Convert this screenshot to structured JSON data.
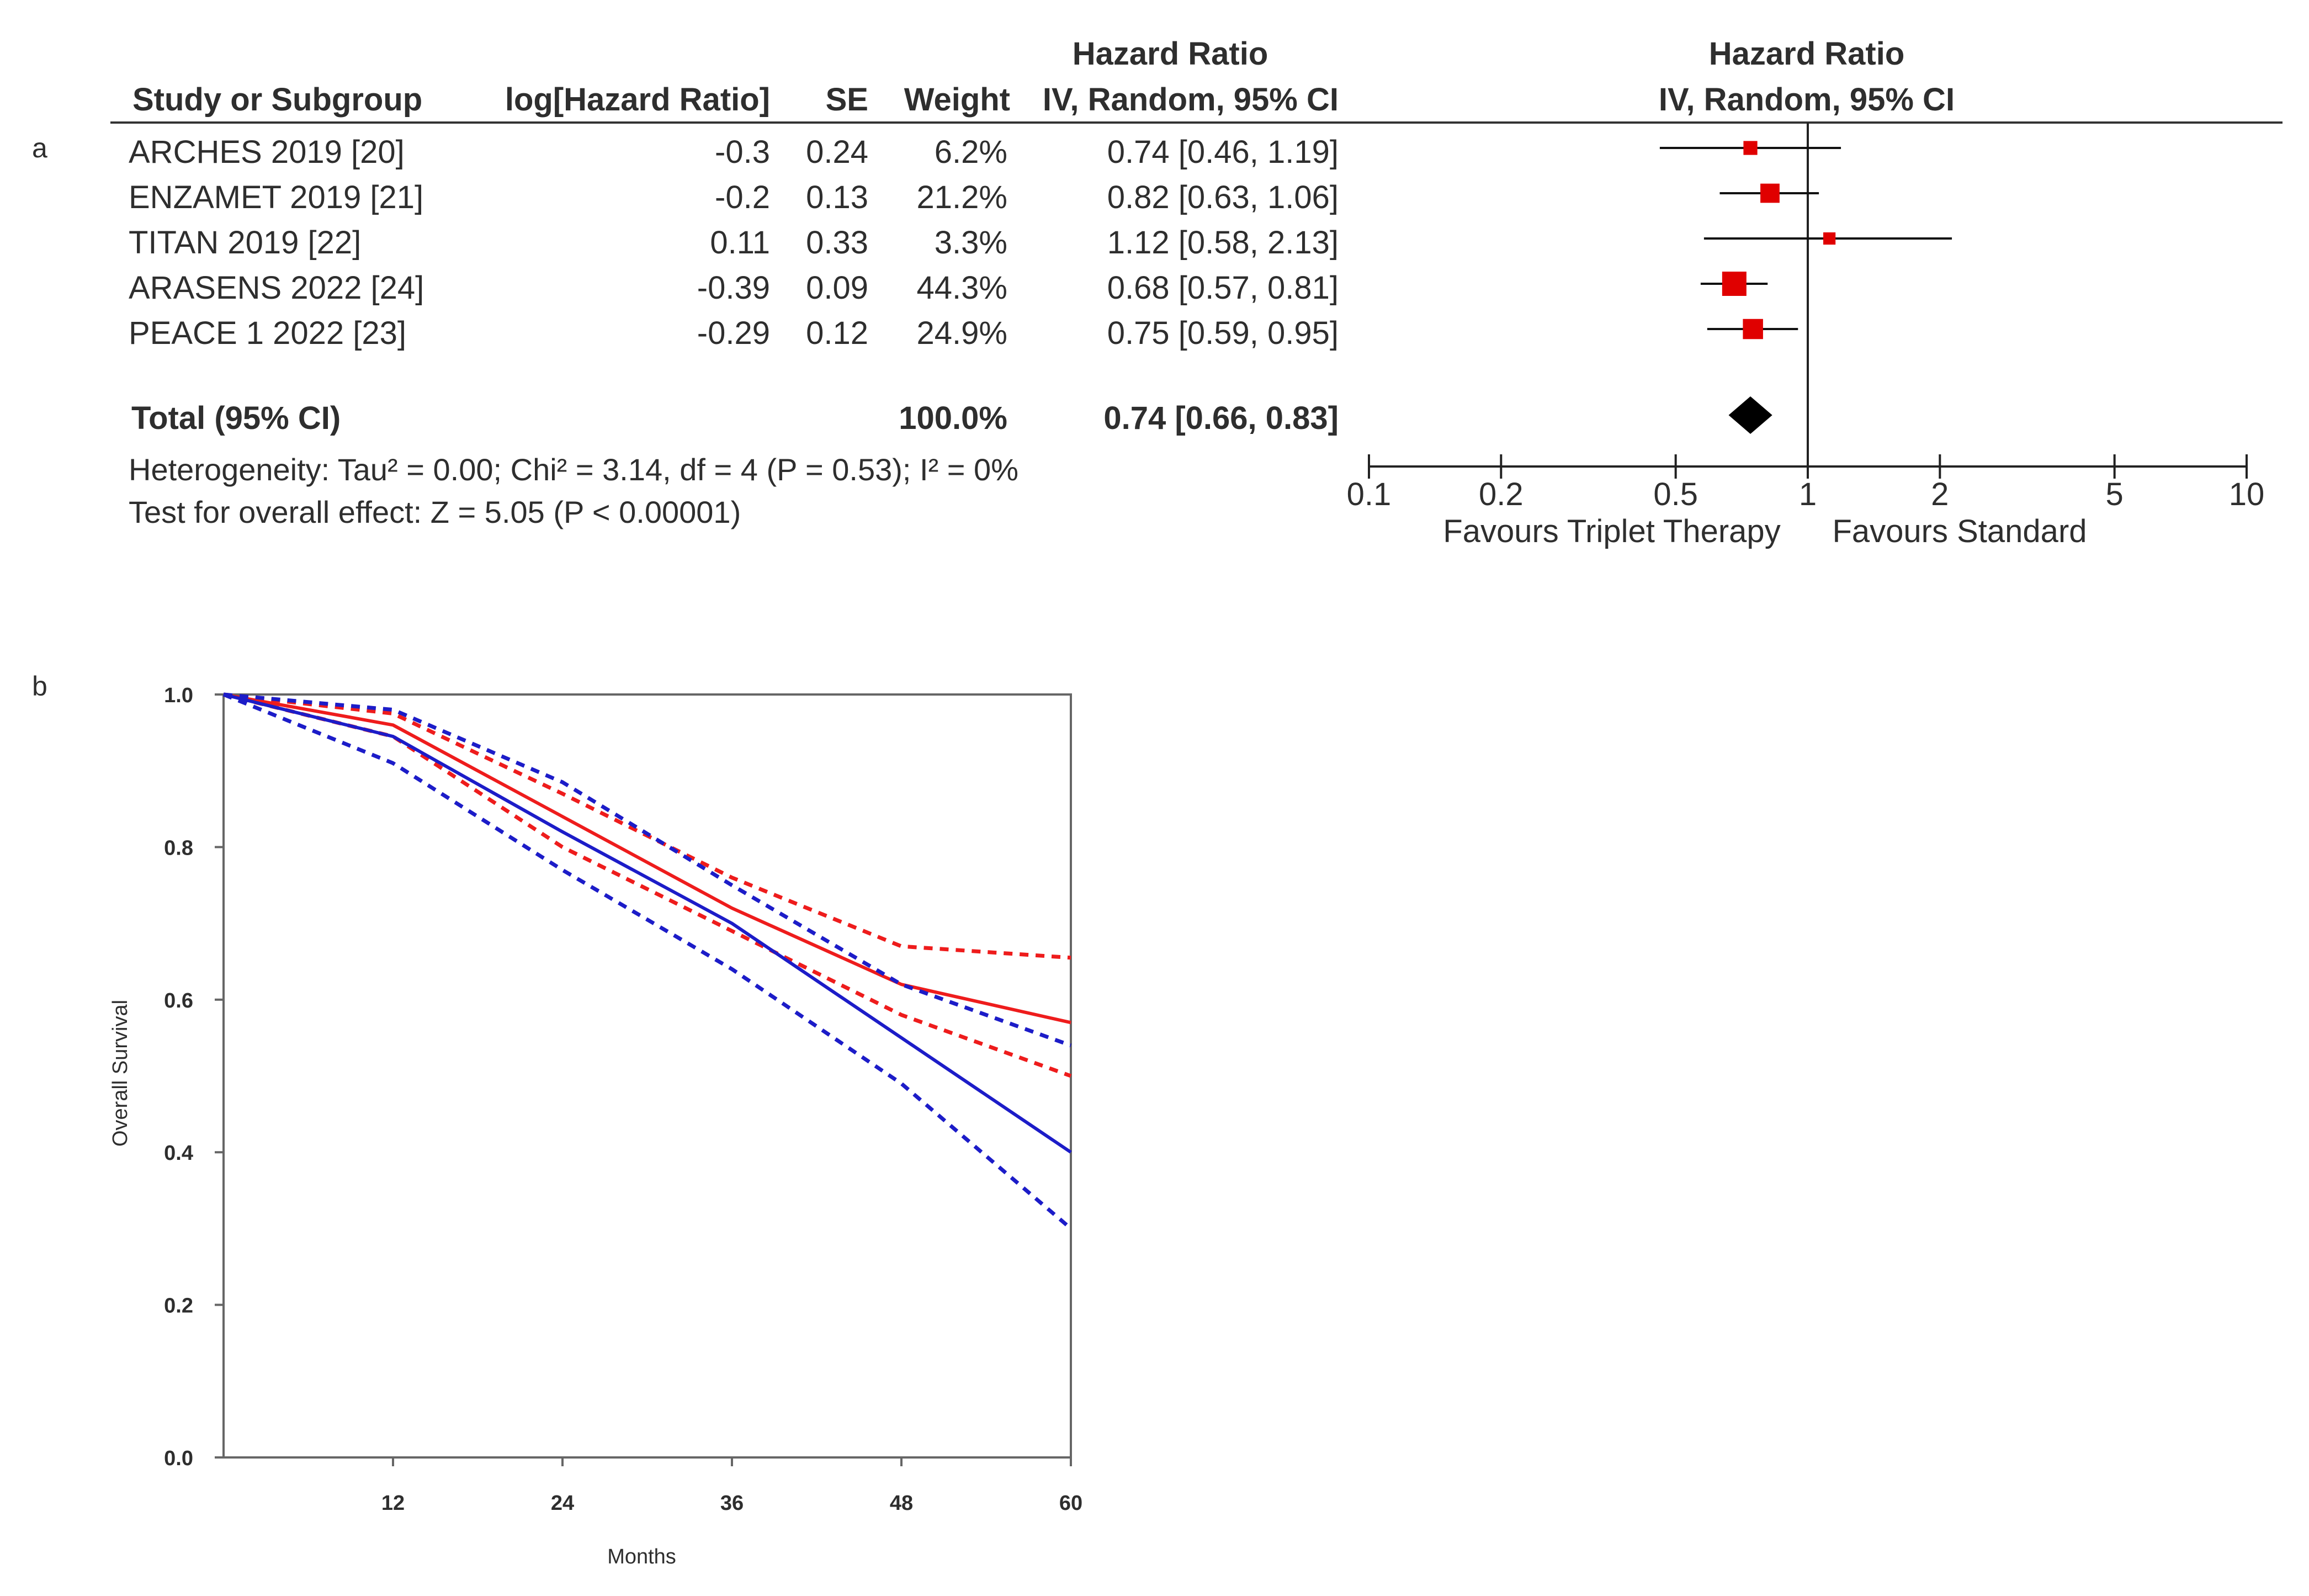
{
  "panel_a": {
    "label": "a",
    "headers": {
      "study": "Study or Subgroup",
      "loghr": "log[Hazard Ratio]",
      "se": "SE",
      "weight": "Weight",
      "hr_line1": "Hazard Ratio",
      "hr_line2": "IV, Random, 95% CI",
      "plot_line1": "Hazard Ratio",
      "plot_line2": "IV, Random, 95% CI"
    },
    "rows": [
      {
        "study": "ARCHES 2019 [20]",
        "loghr": "-0.3",
        "se": "0.24",
        "weight": "6.2%",
        "ci": "0.74 [0.46, 1.19]"
      },
      {
        "study": "ENZAMET 2019 [21]",
        "loghr": "-0.2",
        "se": "0.13",
        "weight": "21.2%",
        "ci": "0.82 [0.63, 1.06]"
      },
      {
        "study": "TITAN 2019 [22]",
        "loghr": "0.11",
        "se": "0.33",
        "weight": "3.3%",
        "ci": "1.12 [0.58, 2.13]"
      },
      {
        "study": "ARASENS 2022 [24]",
        "loghr": "-0.39",
        "se": "0.09",
        "weight": "44.3%",
        "ci": "0.68 [0.57, 0.81]"
      },
      {
        "study": "PEACE 1  2022 [23]",
        "loghr": "-0.29",
        "se": "0.12",
        "weight": "24.9%",
        "ci": "0.75 [0.59, 0.95]"
      }
    ],
    "total": {
      "label": "Total (95% CI)",
      "weight": "100.0%",
      "ci": "0.74 [0.66, 0.83]"
    },
    "heterogeneity": "Heterogeneity: Tau² = 0.00; Chi² = 3.14, df = 4 (P = 0.53); I² = 0%",
    "overall_effect": "Test for overall effect: Z = 5.05 (P < 0.00001)",
    "axis_ticks": [
      "0.1",
      "0.2",
      "0.5",
      "1",
      "2",
      "5",
      "10"
    ],
    "favours_left": "Favours Triplet Therapy",
    "favours_right": "Favours Standard"
  },
  "panel_b": {
    "label": "b"
  },
  "chart_data": [
    {
      "type": "forest",
      "title": "Hazard Ratio IV, Random, 95% CI",
      "scale": "log",
      "xlim": [
        0.1,
        10
      ],
      "ticks": [
        0.1,
        0.2,
        0.5,
        1,
        2,
        5,
        10
      ],
      "reference_line": 1,
      "studies": [
        {
          "name": "ARCHES 2019 [20]",
          "hr": 0.74,
          "lower": 0.46,
          "upper": 1.19,
          "weight": 6.2
        },
        {
          "name": "ENZAMET 2019 [21]",
          "hr": 0.82,
          "lower": 0.63,
          "upper": 1.06,
          "weight": 21.2
        },
        {
          "name": "TITAN 2019 [22]",
          "hr": 1.12,
          "lower": 0.58,
          "upper": 2.13,
          "weight": 3.3
        },
        {
          "name": "ARASENS 2022 [24]",
          "hr": 0.68,
          "lower": 0.57,
          "upper": 0.81,
          "weight": 44.3
        },
        {
          "name": "PEACE 1  2022 [23]",
          "hr": 0.75,
          "lower": 0.59,
          "upper": 0.95,
          "weight": 24.9
        }
      ],
      "pooled": {
        "hr": 0.74,
        "lower": 0.66,
        "upper": 0.83
      },
      "xlabel_left": "Favours Triplet Therapy",
      "xlabel_right": "Favours Standard"
    },
    {
      "type": "line",
      "xlabel": "Months",
      "ylabel": "Overall Survival",
      "xlim": [
        0,
        60
      ],
      "ylim": [
        0,
        1
      ],
      "xticks": [
        12,
        24,
        36,
        48,
        60
      ],
      "yticks": [
        "0.0",
        "0.2",
        "0.4",
        "0.6",
        "0.8",
        "1.0"
      ],
      "series": [
        {
          "name": "red",
          "color": "#ee1c1c",
          "style": "solid",
          "x": [
            0,
            12,
            24,
            36,
            48,
            60
          ],
          "y": [
            1.0,
            0.96,
            0.84,
            0.72,
            0.62,
            0.57
          ]
        },
        {
          "name": "red-upper",
          "color": "#ee1c1c",
          "style": "dashed",
          "x": [
            0,
            12,
            24,
            36,
            48,
            60
          ],
          "y": [
            1.0,
            0.975,
            0.87,
            0.76,
            0.67,
            0.655
          ]
        },
        {
          "name": "red-lower",
          "color": "#ee1c1c",
          "style": "dashed",
          "x": [
            0,
            12,
            24,
            36,
            48,
            60
          ],
          "y": [
            1.0,
            0.945,
            0.8,
            0.69,
            0.58,
            0.5
          ]
        },
        {
          "name": "blue",
          "color": "#1c1cc8",
          "style": "solid",
          "x": [
            0,
            12,
            24,
            36,
            48,
            60
          ],
          "y": [
            1.0,
            0.945,
            0.82,
            0.7,
            0.55,
            0.4
          ]
        },
        {
          "name": "blue-upper",
          "color": "#1c1cc8",
          "style": "dashed",
          "x": [
            0,
            12,
            24,
            36,
            48,
            60
          ],
          "y": [
            1.0,
            0.98,
            0.885,
            0.75,
            0.62,
            0.54
          ]
        },
        {
          "name": "blue-lower",
          "color": "#1c1cc8",
          "style": "dashed",
          "x": [
            0,
            12,
            24,
            36,
            48,
            60
          ],
          "y": [
            1.0,
            0.91,
            0.77,
            0.64,
            0.49,
            0.3
          ]
        }
      ]
    }
  ]
}
